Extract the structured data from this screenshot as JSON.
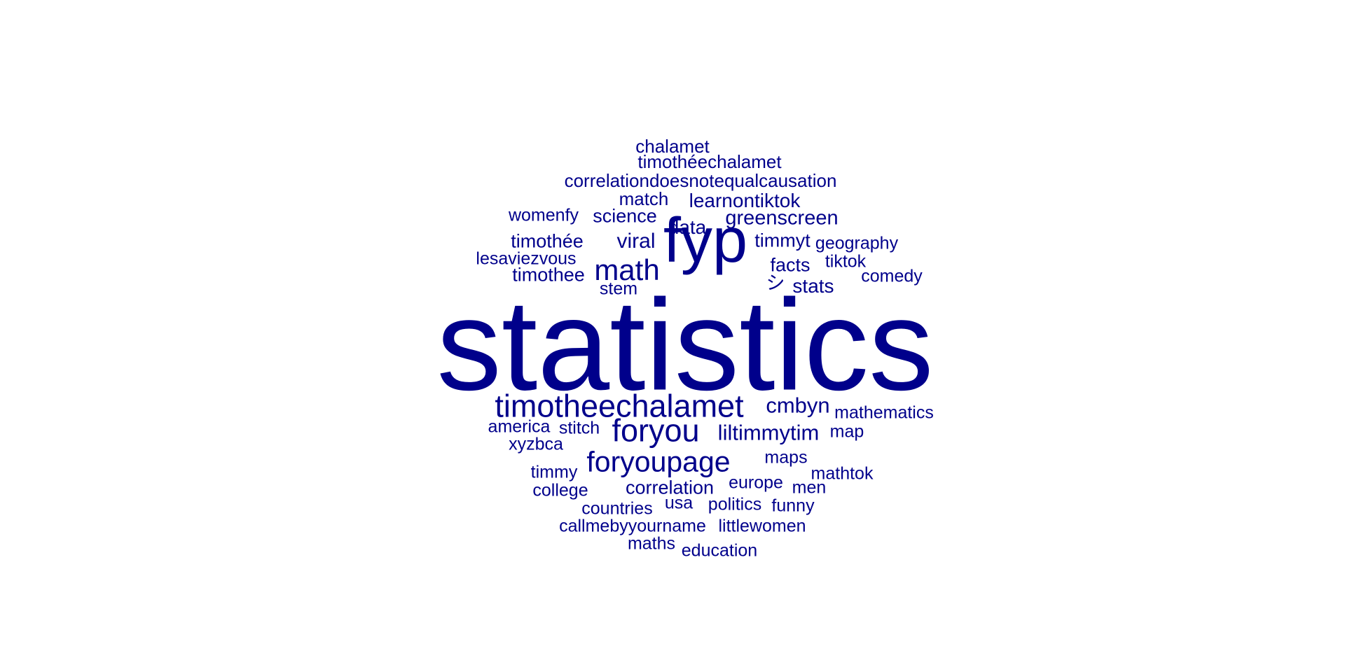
{
  "colors": {
    "word": "#00008B",
    "background": "#FFFFFF"
  },
  "words": [
    {
      "text": "statistics"
    },
    {
      "text": "fyp"
    },
    {
      "text": "timotheechalamet"
    },
    {
      "text": "foryou"
    },
    {
      "text": "foryoupage"
    },
    {
      "text": "math"
    },
    {
      "text": "cmbyn"
    },
    {
      "text": "liltimmytim"
    },
    {
      "text": "viral"
    },
    {
      "text": "greenscreen"
    },
    {
      "text": "learnontiktok"
    },
    {
      "text": "data"
    },
    {
      "text": "stats"
    },
    {
      "text": "facts"
    },
    {
      "text": "science"
    },
    {
      "text": "timothée"
    },
    {
      "text": "timothee"
    },
    {
      "text": "timmyt"
    },
    {
      "text": "correlation"
    },
    {
      "text": "correlationdoesnotequalcausation"
    },
    {
      "text": "timothéechalamet"
    },
    {
      "text": "chalamet"
    },
    {
      "text": "match"
    },
    {
      "text": "womenfy"
    },
    {
      "text": "lesaviezvous"
    },
    {
      "text": "stem"
    },
    {
      "text": "geography"
    },
    {
      "text": "tiktok"
    },
    {
      "text": "comedy"
    },
    {
      "text": "シ"
    },
    {
      "text": "mathematics"
    },
    {
      "text": "map"
    },
    {
      "text": "america"
    },
    {
      "text": "stitch"
    },
    {
      "text": "xyzbca"
    },
    {
      "text": "maps"
    },
    {
      "text": "mathtok"
    },
    {
      "text": "timmy"
    },
    {
      "text": "europe"
    },
    {
      "text": "men"
    },
    {
      "text": "college"
    },
    {
      "text": "countries"
    },
    {
      "text": "usa"
    },
    {
      "text": "politics"
    },
    {
      "text": "funny"
    },
    {
      "text": "callmebyyourname"
    },
    {
      "text": "littlewomen"
    },
    {
      "text": "maths"
    },
    {
      "text": "education"
    }
  ]
}
